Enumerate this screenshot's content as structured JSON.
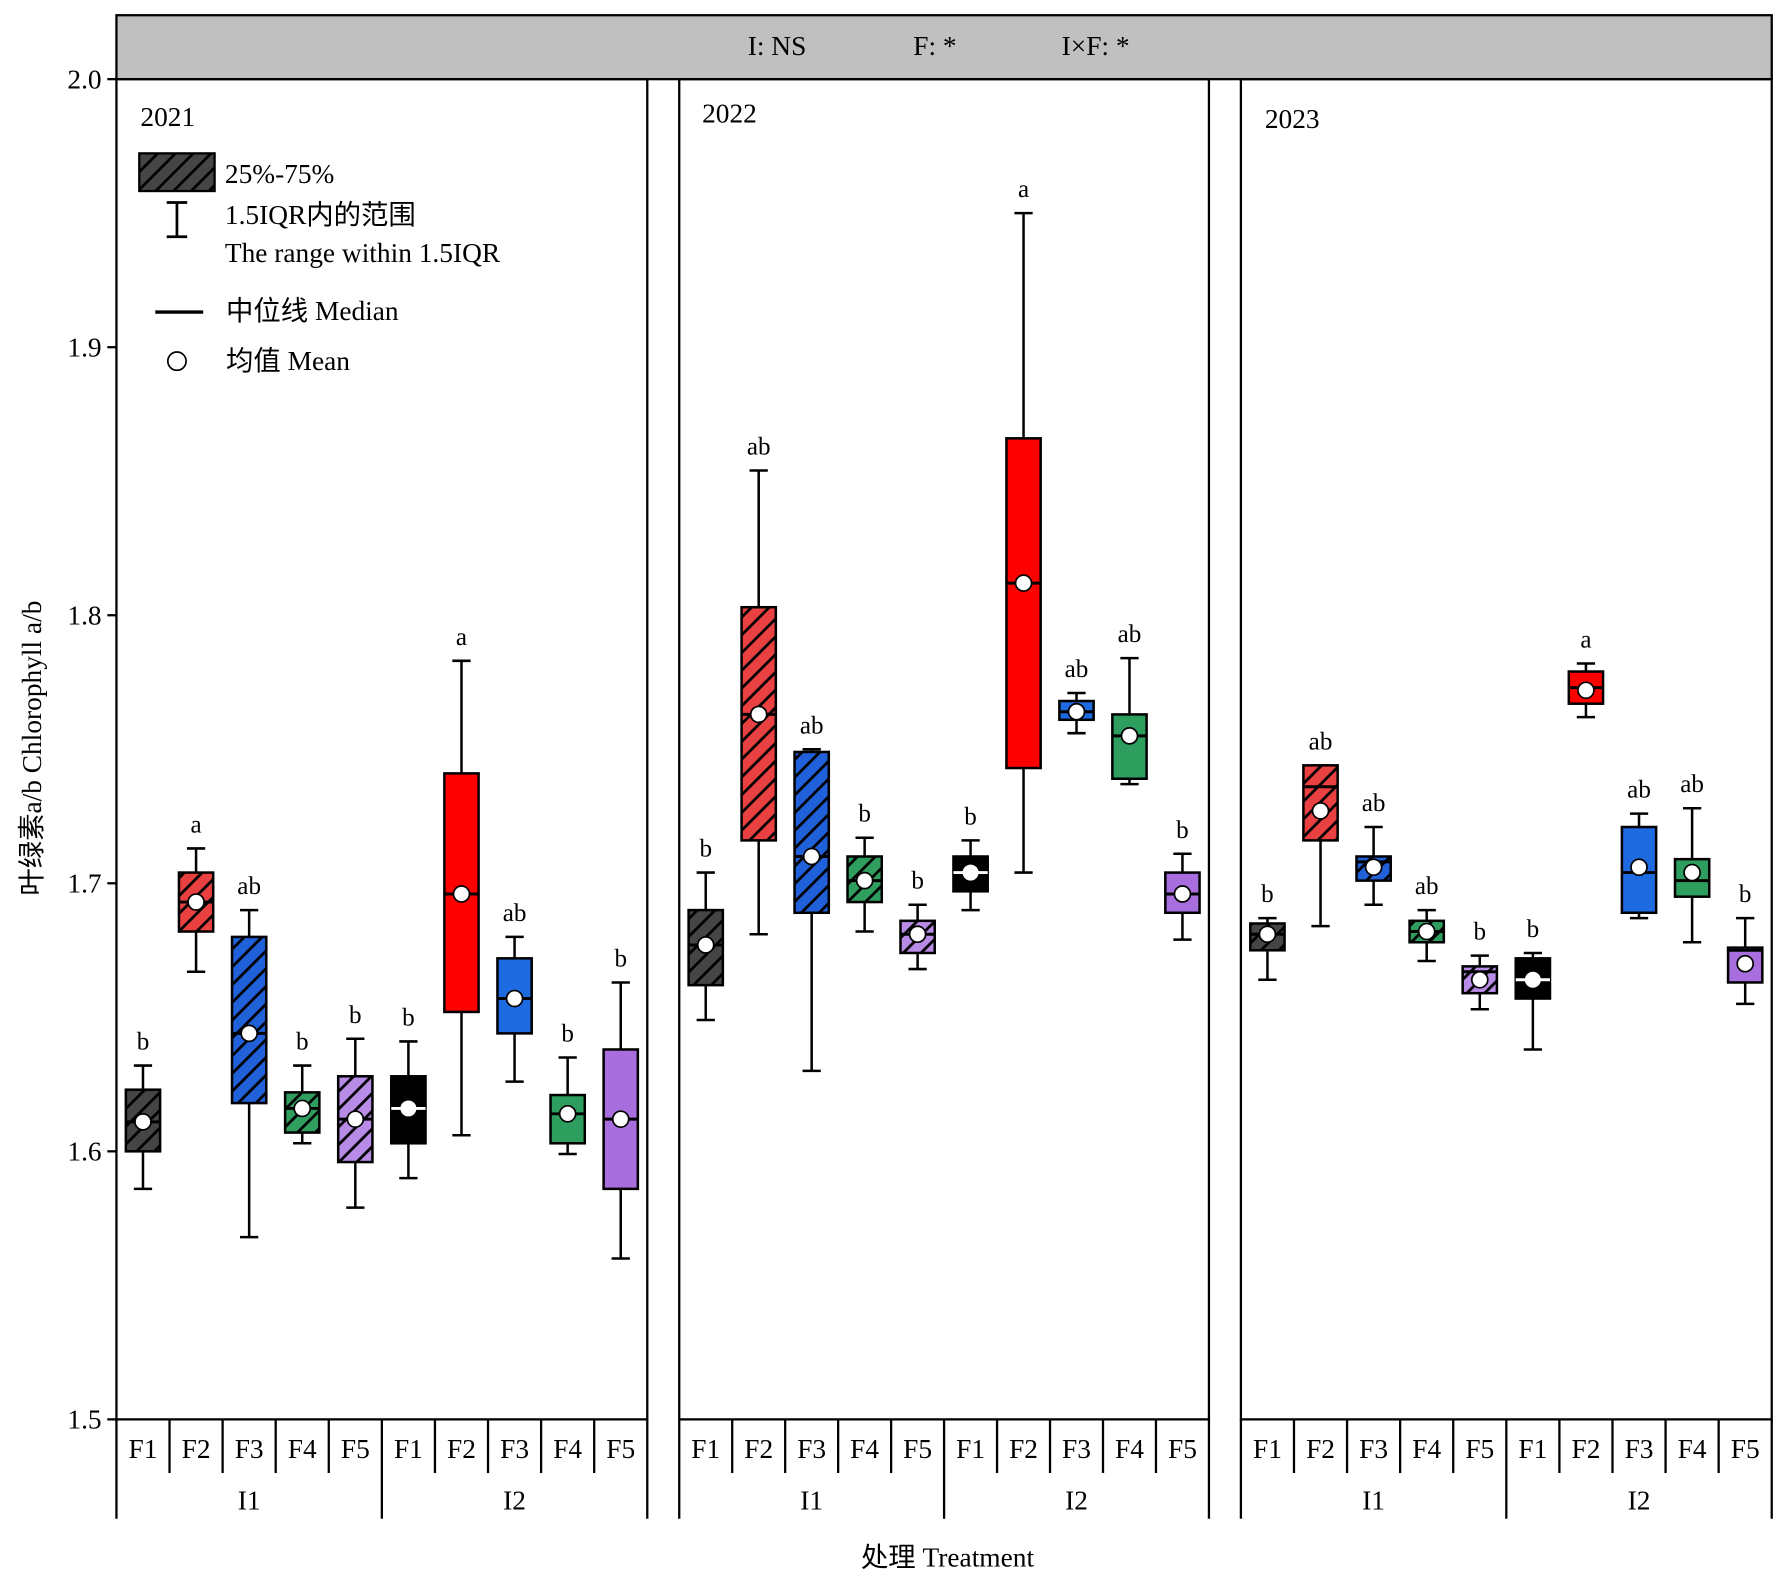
{
  "legend": {
    "box_label": "25%-75%",
    "whisker_label": "1.5IQR内的范围",
    "whisker_label_en": "The range within 1.5IQR",
    "median_label": "中位线 Median",
    "mean_label": "均值 Mean"
  },
  "chart_data": {
    "type": "box",
    "ylabel": "叶绿素a/b Chlorophyll a/b",
    "xlabel": "处理 Treatment",
    "ylim": [
      1.5,
      2.0
    ],
    "ytick_labels": [
      "1.5",
      "1.6",
      "1.7",
      "1.8",
      "1.9",
      "2.0"
    ],
    "annotations": [
      "I: NS",
      "F: *",
      "I×F: *"
    ],
    "colors": {
      "I1": {
        "F1": "#454545",
        "F2": "#e94141",
        "F3": "#2060d8",
        "F4": "#2f9e5f",
        "F5": "#b88be6"
      },
      "I2": {
        "F1": "#000000",
        "F2": "#ff0000",
        "F3": "#1e6ae0",
        "F4": "#2e9e5f",
        "F5": "#a86ede"
      }
    },
    "panels": [
      {
        "title": "2021",
        "groups": [
          {
            "name": "I1",
            "hatched": true,
            "boxes": [
              {
                "treatment": "F1",
                "whisker_low": 1.586,
                "q1": 1.6,
                "median": 1.611,
                "q3": 1.623,
                "whisker_high": 1.632,
                "mean": 1.611,
                "letter": "b"
              },
              {
                "treatment": "F2",
                "whisker_low": 1.667,
                "q1": 1.682,
                "median": 1.693,
                "q3": 1.704,
                "whisker_high": 1.713,
                "mean": 1.693,
                "letter": "a"
              },
              {
                "treatment": "F3",
                "whisker_low": 1.568,
                "q1": 1.618,
                "median": 1.644,
                "q3": 1.68,
                "whisker_high": 1.69,
                "mean": 1.644,
                "letter": "ab"
              },
              {
                "treatment": "F4",
                "whisker_low": 1.603,
                "q1": 1.607,
                "median": 1.616,
                "q3": 1.622,
                "whisker_high": 1.632,
                "mean": 1.616,
                "letter": "b"
              },
              {
                "treatment": "F5",
                "whisker_low": 1.579,
                "q1": 1.596,
                "median": 1.612,
                "q3": 1.628,
                "whisker_high": 1.642,
                "mean": 1.612,
                "letter": "b"
              }
            ]
          },
          {
            "name": "I2",
            "hatched": false,
            "boxes": [
              {
                "treatment": "F1",
                "whisker_low": 1.59,
                "q1": 1.603,
                "median": 1.616,
                "q3": 1.628,
                "whisker_high": 1.641,
                "mean": 1.616,
                "letter": "b"
              },
              {
                "treatment": "F2",
                "whisker_low": 1.606,
                "q1": 1.652,
                "median": 1.696,
                "q3": 1.741,
                "whisker_high": 1.783,
                "mean": 1.696,
                "letter": "a"
              },
              {
                "treatment": "F3",
                "whisker_low": 1.626,
                "q1": 1.644,
                "median": 1.657,
                "q3": 1.672,
                "whisker_high": 1.68,
                "mean": 1.657,
                "letter": "ab"
              },
              {
                "treatment": "F4",
                "whisker_low": 1.599,
                "q1": 1.603,
                "median": 1.614,
                "q3": 1.621,
                "whisker_high": 1.635,
                "mean": 1.614,
                "letter": "b"
              },
              {
                "treatment": "F5",
                "whisker_low": 1.56,
                "q1": 1.586,
                "median": 1.612,
                "q3": 1.638,
                "whisker_high": 1.663,
                "mean": 1.612,
                "letter": "b"
              }
            ]
          }
        ]
      },
      {
        "title": "2022",
        "groups": [
          {
            "name": "I1",
            "hatched": true,
            "boxes": [
              {
                "treatment": "F1",
                "whisker_low": 1.649,
                "q1": 1.662,
                "median": 1.677,
                "q3": 1.69,
                "whisker_high": 1.704,
                "mean": 1.677,
                "letter": "b"
              },
              {
                "treatment": "F2",
                "whisker_low": 1.681,
                "q1": 1.716,
                "median": 1.763,
                "q3": 1.803,
                "whisker_high": 1.854,
                "mean": 1.763,
                "letter": "ab"
              },
              {
                "treatment": "F3",
                "whisker_low": 1.63,
                "q1": 1.689,
                "median": 1.71,
                "q3": 1.749,
                "whisker_high": 1.75,
                "mean": 1.71,
                "letter": "ab"
              },
              {
                "treatment": "F4",
                "whisker_low": 1.682,
                "q1": 1.693,
                "median": 1.701,
                "q3": 1.71,
                "whisker_high": 1.717,
                "mean": 1.701,
                "letter": "b"
              },
              {
                "treatment": "F5",
                "whisker_low": 1.668,
                "q1": 1.674,
                "median": 1.681,
                "q3": 1.686,
                "whisker_high": 1.692,
                "mean": 1.681,
                "letter": "b"
              }
            ]
          },
          {
            "name": "I2",
            "hatched": false,
            "boxes": [
              {
                "treatment": "F1",
                "whisker_low": 1.69,
                "q1": 1.697,
                "median": 1.704,
                "q3": 1.71,
                "whisker_high": 1.716,
                "mean": 1.704,
                "letter": "b"
              },
              {
                "treatment": "F2",
                "whisker_low": 1.704,
                "q1": 1.743,
                "median": 1.812,
                "q3": 1.866,
                "whisker_high": 1.95,
                "mean": 1.812,
                "letter": "a"
              },
              {
                "treatment": "F3",
                "whisker_low": 1.756,
                "q1": 1.761,
                "median": 1.764,
                "q3": 1.768,
                "whisker_high": 1.771,
                "mean": 1.764,
                "letter": "ab"
              },
              {
                "treatment": "F4",
                "whisker_low": 1.737,
                "q1": 1.739,
                "median": 1.755,
                "q3": 1.763,
                "whisker_high": 1.784,
                "mean": 1.755,
                "letter": "ab"
              },
              {
                "treatment": "F5",
                "whisker_low": 1.679,
                "q1": 1.689,
                "median": 1.696,
                "q3": 1.704,
                "whisker_high": 1.711,
                "mean": 1.696,
                "letter": "b"
              }
            ]
          }
        ]
      },
      {
        "title": "2023",
        "groups": [
          {
            "name": "I1",
            "hatched": true,
            "boxes": [
              {
                "treatment": "F1",
                "whisker_low": 1.664,
                "q1": 1.675,
                "median": 1.681,
                "q3": 1.685,
                "whisker_high": 1.687,
                "mean": 1.681,
                "letter": "b"
              },
              {
                "treatment": "F2",
                "whisker_low": 1.684,
                "q1": 1.716,
                "median": 1.736,
                "q3": 1.744,
                "whisker_high": 1.744,
                "mean": 1.727,
                "letter": "ab"
              },
              {
                "treatment": "F3",
                "whisker_low": 1.692,
                "q1": 1.701,
                "median": 1.708,
                "q3": 1.71,
                "whisker_high": 1.721,
                "mean": 1.706,
                "letter": "ab"
              },
              {
                "treatment": "F4",
                "whisker_low": 1.671,
                "q1": 1.678,
                "median": 1.682,
                "q3": 1.686,
                "whisker_high": 1.69,
                "mean": 1.682,
                "letter": "ab"
              },
              {
                "treatment": "F5",
                "whisker_low": 1.653,
                "q1": 1.659,
                "median": 1.667,
                "q3": 1.669,
                "whisker_high": 1.673,
                "mean": 1.664,
                "letter": "b"
              }
            ]
          },
          {
            "name": "I2",
            "hatched": false,
            "boxes": [
              {
                "treatment": "F1",
                "whisker_low": 1.638,
                "q1": 1.657,
                "median": 1.664,
                "q3": 1.672,
                "whisker_high": 1.674,
                "mean": 1.664,
                "letter": "b"
              },
              {
                "treatment": "F2",
                "whisker_low": 1.762,
                "q1": 1.767,
                "median": 1.773,
                "q3": 1.779,
                "whisker_high": 1.782,
                "mean": 1.772,
                "letter": "a"
              },
              {
                "treatment": "F3",
                "whisker_low": 1.687,
                "q1": 1.689,
                "median": 1.704,
                "q3": 1.721,
                "whisker_high": 1.726,
                "mean": 1.706,
                "letter": "ab"
              },
              {
                "treatment": "F4",
                "whisker_low": 1.678,
                "q1": 1.695,
                "median": 1.701,
                "q3": 1.709,
                "whisker_high": 1.728,
                "mean": 1.704,
                "letter": "ab"
              },
              {
                "treatment": "F5",
                "whisker_low": 1.655,
                "q1": 1.663,
                "median": 1.675,
                "q3": 1.676,
                "whisker_high": 1.687,
                "mean": 1.67,
                "letter": "b"
              }
            ]
          }
        ]
      }
    ]
  }
}
